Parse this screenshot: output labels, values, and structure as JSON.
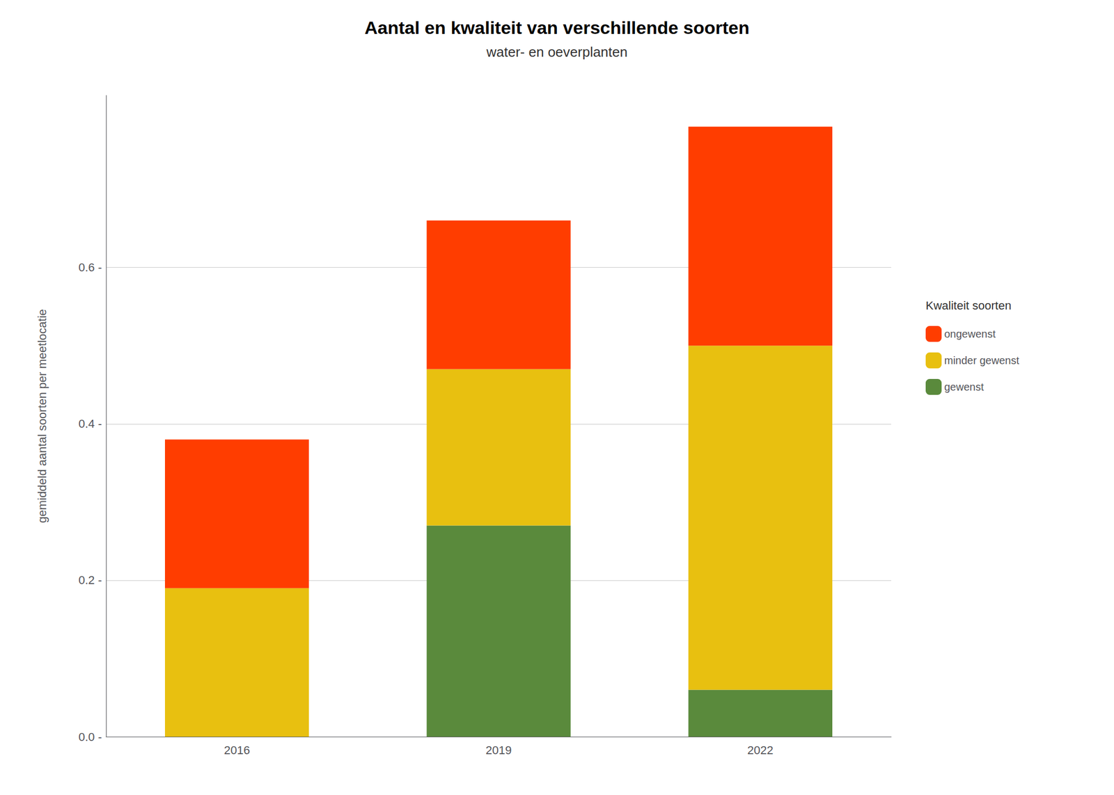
{
  "chart_data": {
    "type": "bar",
    "title": "Aantal en kwaliteit van verschillende soorten",
    "subtitle": "water- en oeverplanten",
    "ylabel": "gemiddeld aantal soorten per meetlocatie",
    "categories": [
      "2016",
      "2019",
      "2022"
    ],
    "series": [
      {
        "name": "gewenst",
        "color": "#5a8a3c",
        "values": [
          0.0,
          0.27,
          0.06
        ]
      },
      {
        "name": "minder gewenst",
        "color": "#e8c010",
        "values": [
          0.19,
          0.2,
          0.44
        ]
      },
      {
        "name": "ongewenst",
        "color": "#ff3d00",
        "values": [
          0.19,
          0.19,
          0.28
        ]
      }
    ],
    "stacked": true,
    "ylim": [
      0,
      0.82
    ],
    "yticks": [
      {
        "value": 0.0,
        "label": "0.0 -"
      },
      {
        "value": 0.2,
        "label": "0.2 -"
      },
      {
        "value": 0.4,
        "label": "0.4 -"
      },
      {
        "value": 0.6,
        "label": "0.6 -"
      }
    ],
    "grid": true,
    "legend": "right",
    "legend_title": "Kwaliteit soorten"
  }
}
